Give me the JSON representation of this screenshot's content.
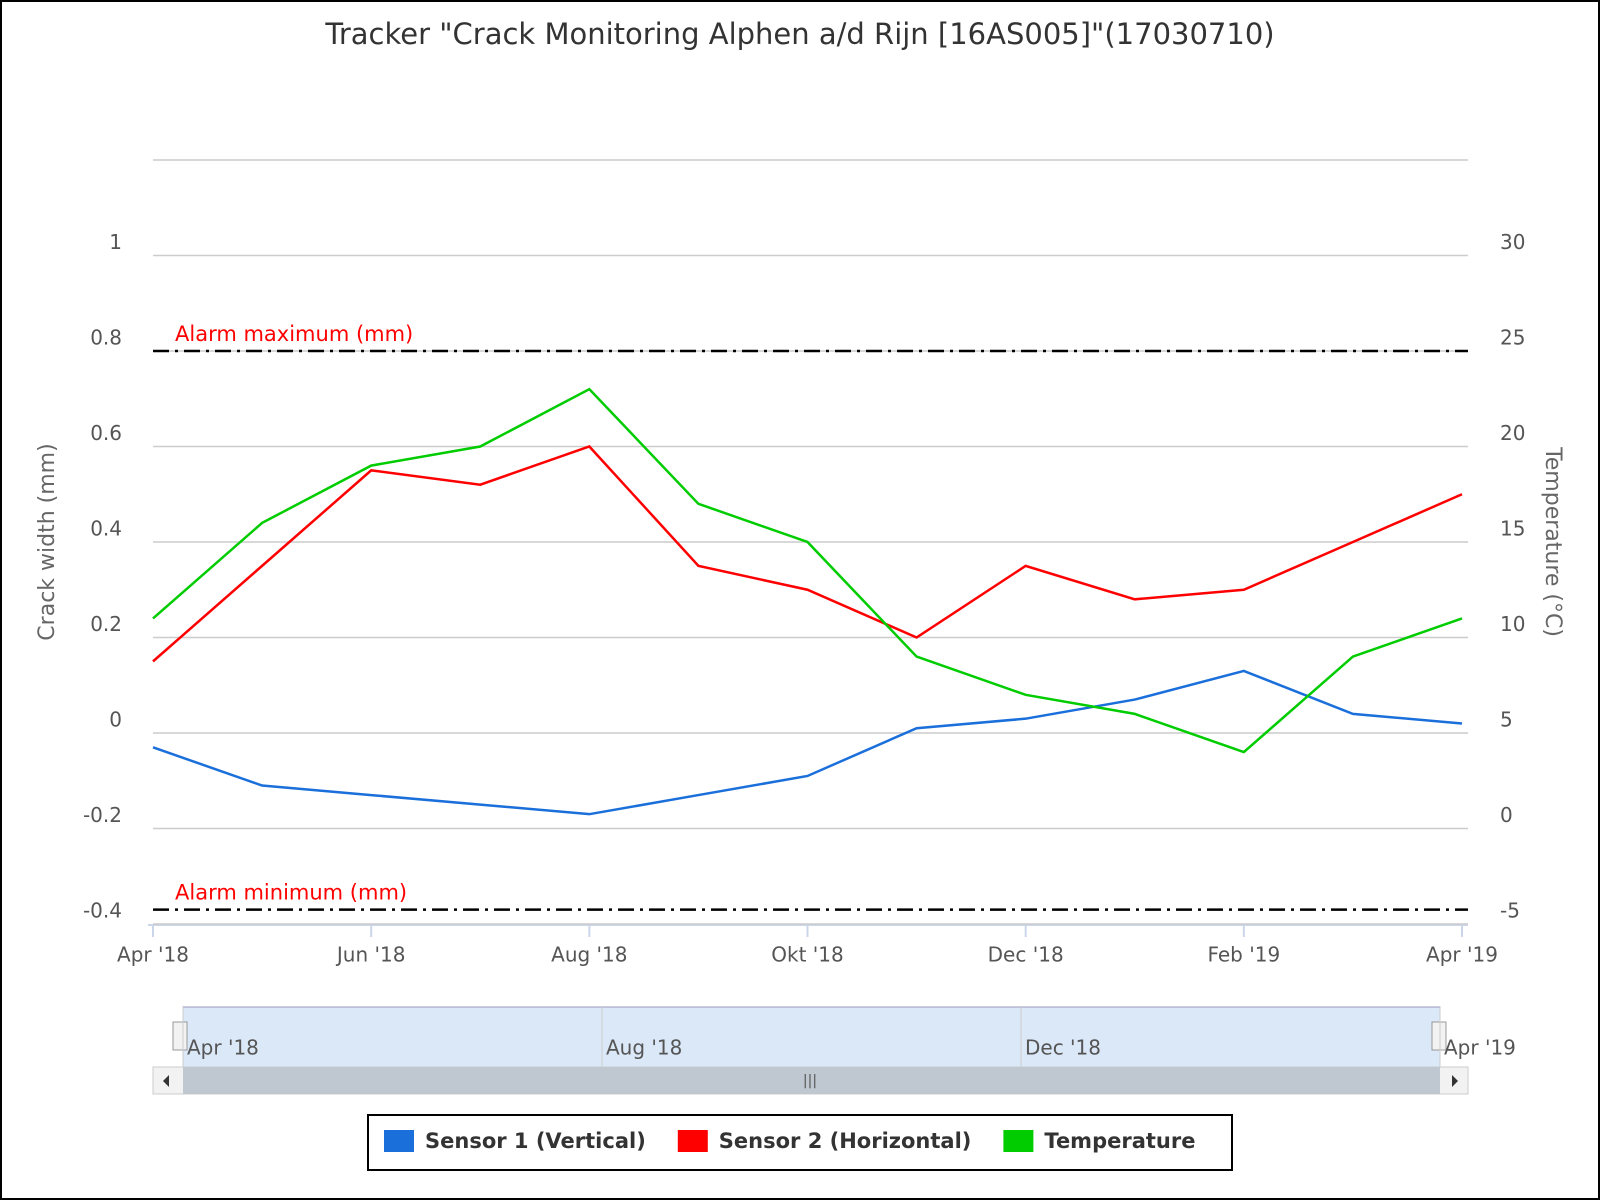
{
  "chart_data": {
    "type": "line",
    "title": "Tracker \"Crack Monitoring Alphen a/d Rijn [16AS005]\"(17030710)",
    "y_label": "Crack width (mm)",
    "y2_label": "Temperature (°C)",
    "x": [
      "2018-04",
      "2018-05",
      "2018-06",
      "2018-07",
      "2018-08",
      "2018-09",
      "2018-10",
      "2018-11",
      "2018-12",
      "2019-01",
      "2019-02",
      "2019-03",
      "2019-04"
    ],
    "xlim": [
      "2018-04",
      "2019-04"
    ],
    "xticks": [
      {
        "value": "2018-04",
        "label": "Apr '18"
      },
      {
        "value": "2018-06",
        "label": "Jun '18"
      },
      {
        "value": "2018-08",
        "label": "Aug '18"
      },
      {
        "value": "2018-10",
        "label": "Okt '18"
      },
      {
        "value": "2018-12",
        "label": "Dec '18"
      },
      {
        "value": "2019-02",
        "label": "Feb '19"
      },
      {
        "value": "2019-04",
        "label": "Apr '19"
      }
    ],
    "ylim": [
      -0.4,
      1.2
    ],
    "yticks": [
      -0.4,
      -0.2,
      0,
      0.2,
      0.4,
      0.6,
      0.8,
      1
    ],
    "y2lim": [
      -5,
      35
    ],
    "y2ticks": [
      -5,
      0,
      5,
      10,
      15,
      20,
      25,
      30
    ],
    "grid": true,
    "legend": "bottom",
    "series": [
      {
        "name": "Sensor 1 (Vertical)",
        "color": "#1a6fdb",
        "values": [
          -0.03,
          -0.11,
          -0.13,
          -0.15,
          -0.17,
          -0.13,
          -0.09,
          0.01,
          0.03,
          0.07,
          0.13,
          0.04,
          0.02
        ]
      },
      {
        "name": "Sensor 2 (Horizontal)",
        "color": "#ff0000",
        "values": [
          0.15,
          0.35,
          0.55,
          0.52,
          0.6,
          0.35,
          0.3,
          0.2,
          0.35,
          0.28,
          0.3,
          0.4,
          0.5
        ]
      },
      {
        "name": "Temperature",
        "color": "#00cc00",
        "axis": "y2",
        "values": [
          11,
          16,
          19,
          20,
          23,
          17,
          15,
          9,
          7,
          6,
          4,
          9,
          11
        ]
      }
    ],
    "thresholds": [
      {
        "label": "Alarm maximum (mm)",
        "value": 0.8
      },
      {
        "label": "Alarm minimum (mm)",
        "value": -0.37
      }
    ],
    "navigator": {
      "xticks": [
        {
          "value": "2018-04",
          "label": "Apr '18"
        },
        {
          "value": "2018-08",
          "label": "Aug '18"
        },
        {
          "value": "2018-12",
          "label": "Dec '18"
        },
        {
          "value": "2019-04",
          "label": "Apr '19"
        }
      ]
    }
  }
}
